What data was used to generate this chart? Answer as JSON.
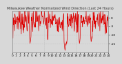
{
  "title": "Milwaukee Weather Normalized Wind Direction (Last 24 Hours)",
  "line_color": "#dd0000",
  "background_color": "#d8d8d8",
  "plot_bg_color": "#d8d8d8",
  "grid_color": "#aaaaaa",
  "ylim": [
    -20,
    4
  ],
  "yticks": [
    0,
    -5,
    -10,
    -15
  ],
  "ytick_labels": [
    "0",
    "-5",
    "-10",
    "-15"
  ],
  "num_points": 288,
  "noise_seed": 7,
  "mean_value": -1.5,
  "std_value": 3.5,
  "linewidth": 0.5,
  "title_fontsize": 3.5,
  "tick_fontsize": 3.2
}
